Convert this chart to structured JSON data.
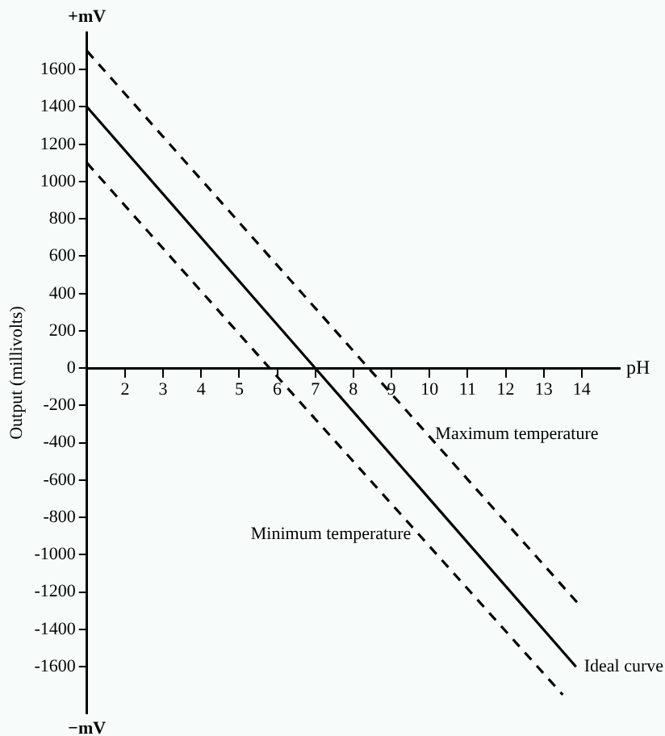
{
  "chart_data": {
    "type": "line",
    "xlabel": "pH",
    "ylabel": "Output (millivolts)",
    "annotations": [
      "+mV",
      "−mV"
    ],
    "xlim": [
      1,
      15
    ],
    "xticks": [
      2,
      3,
      4,
      5,
      6,
      7,
      8,
      9,
      10,
      11,
      12,
      13,
      14
    ],
    "ylim": [
      -1850,
      1800
    ],
    "yticks": [
      -1600,
      -1400,
      -1200,
      -1000,
      -800,
      -600,
      -400,
      -200,
      0,
      200,
      400,
      600,
      800,
      1000,
      1200,
      1400,
      1600
    ],
    "grid": false,
    "legend": false,
    "marker": "none",
    "series": [
      {
        "name": "Maximum temperature",
        "color": "#000000",
        "line_style": "dashed",
        "x": [
          1,
          8.4,
          13.9
        ],
        "values": [
          1700,
          0,
          -1260
        ]
      },
      {
        "name": "Ideal curve",
        "color": "#000000",
        "line_style": "solid",
        "x": [
          1,
          7,
          13.85
        ],
        "values": [
          1400,
          0,
          -1600
        ]
      },
      {
        "name": "Minimum temperature",
        "color": "#000000",
        "line_style": "dashed",
        "x": [
          1,
          5.8,
          13.5
        ],
        "values": [
          1100,
          0,
          -1750
        ]
      }
    ]
  }
}
